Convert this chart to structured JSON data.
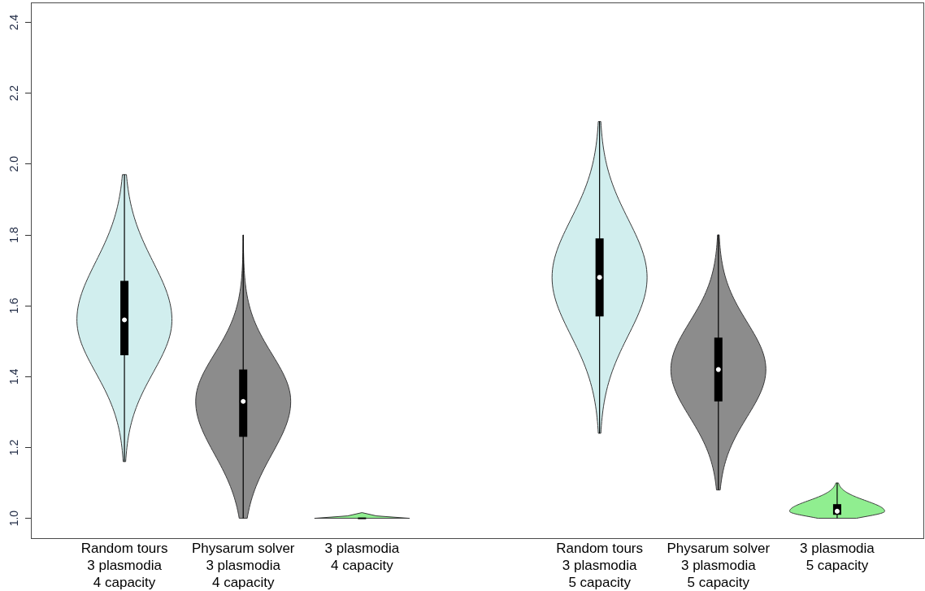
{
  "chart_data": {
    "type": "box",
    "categories": [
      "Random tours\n3 plasmodia\n4 capacity",
      "Physarum solver\n3 plasmodia\n4 capacity",
      "3 plasmodia\n4 capacity",
      null,
      "Random tours\n3 plasmodia\n5 capacity",
      "Physarum solver\n3 plasmodia\n5 capacity",
      "3 plasmodia\n5 capacity"
    ],
    "boxes": [
      {
        "low": 1.16,
        "q1": 1.46,
        "median": 1.56,
        "q3": 1.67,
        "high": 1.97
      },
      {
        "low": 1.0,
        "q1": 1.23,
        "median": 1.33,
        "q3": 1.42,
        "high": 1.8
      },
      {
        "low": 1.0,
        "q1": 1.0,
        "median": 1.0,
        "q3": 1.0,
        "high": 1.0
      },
      null,
      {
        "low": 1.24,
        "q1": 1.57,
        "median": 1.68,
        "q3": 1.79,
        "high": 2.12
      },
      {
        "low": 1.08,
        "q1": 1.33,
        "median": 1.42,
        "q3": 1.51,
        "high": 1.8
      },
      {
        "low": 1.0,
        "q1": 1.01,
        "median": 1.02,
        "q3": 1.04,
        "high": 1.1
      }
    ],
    "colors": [
      "#000000",
      "#000000",
      "#000000",
      null,
      "#000000",
      "#000000",
      "#000000"
    ],
    "ylim": [
      0.944,
      2.456
    ],
    "yticks": [
      {
        "value": 1,
        "label": "1.0"
      },
      1.2,
      1.4,
      1.6,
      1.8,
      {
        "value": 2,
        "label": "2.0"
      },
      2.2,
      2.4
    ]
  }
}
